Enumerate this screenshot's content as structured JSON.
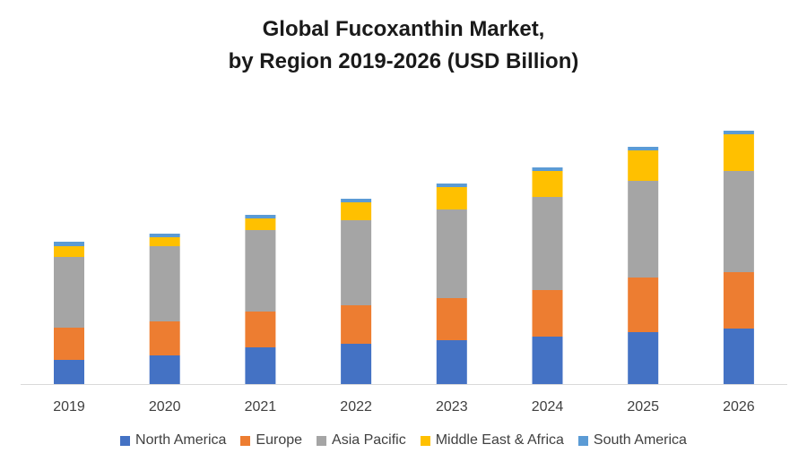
{
  "chart_data": {
    "type": "bar",
    "stacked": true,
    "title": [
      "Global Fucoxanthin Market,",
      "by Region 2019-2026 (USD Billion)"
    ],
    "categories": [
      "2019",
      "2020",
      "2021",
      "2022",
      "2023",
      "2024",
      "2025",
      "2026"
    ],
    "series": [
      {
        "name": "North America",
        "color": "#4472C4",
        "values": [
          27,
          32,
          41,
          45,
          49,
          53,
          58,
          62
        ]
      },
      {
        "name": "Europe",
        "color": "#ED7D31",
        "values": [
          36,
          38,
          40,
          43,
          47,
          52,
          61,
          63
        ]
      },
      {
        "name": "Asia Pacific",
        "color": "#A5A5A5",
        "values": [
          79,
          84,
          91,
          95,
          99,
          104,
          108,
          113
        ]
      },
      {
        "name": "Middle East & Africa",
        "color": "#FFC000",
        "values": [
          12,
          10,
          13,
          20,
          25,
          29,
          34,
          41
        ]
      },
      {
        "name": "South America",
        "color": "#5B9BD5",
        "values": [
          5,
          4,
          4,
          4,
          4,
          4,
          4,
          4
        ]
      }
    ],
    "yaxis_visible": false,
    "gridlines": false,
    "legend_position": "bottom"
  }
}
